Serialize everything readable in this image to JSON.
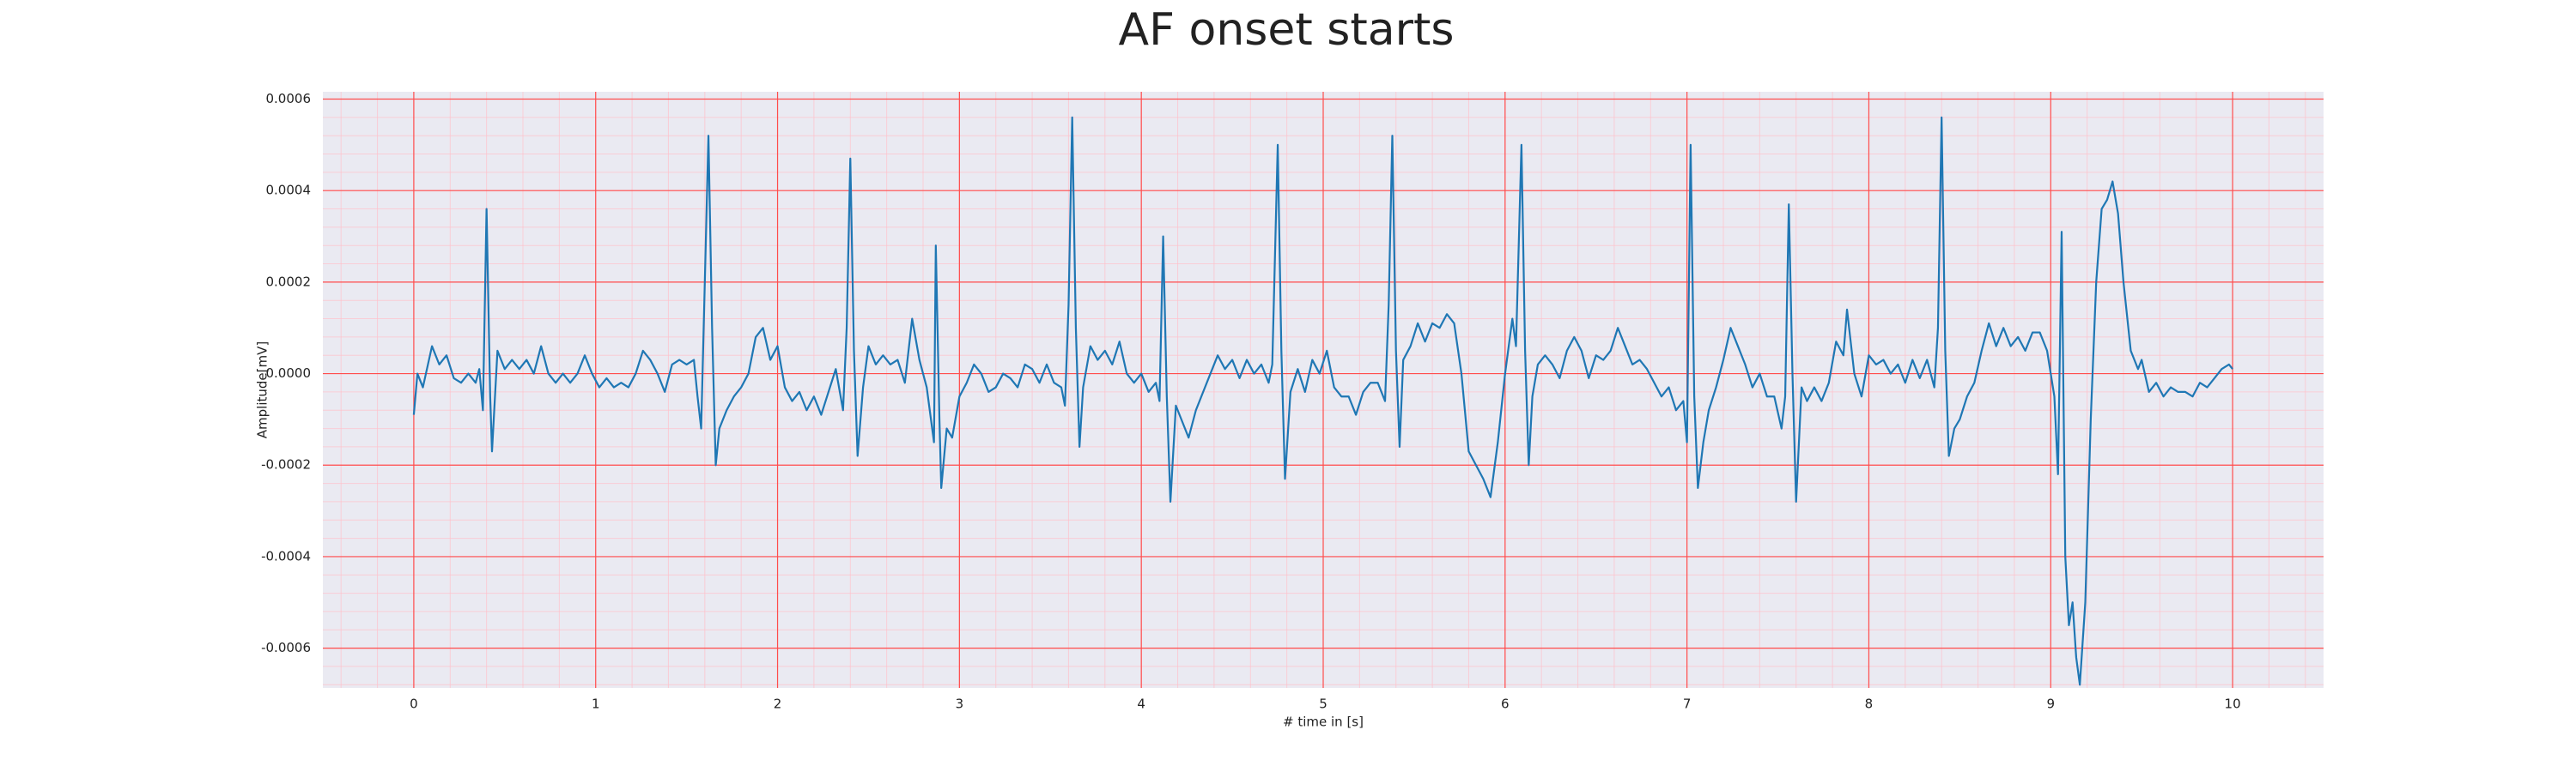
{
  "chart_data": {
    "type": "line",
    "title": "AF onset starts",
    "x_label": "# time in [s]",
    "y_label": "Amplitude[mV]",
    "xlim": [
      -0.5,
      10.5
    ],
    "ylim": [
      -0.000687,
      0.000616
    ],
    "xticks": [
      0,
      1,
      2,
      3,
      4,
      5,
      6,
      7,
      8,
      9,
      10
    ],
    "yticks": [
      0.0006,
      0.0004,
      0.0002,
      {
        "value": 0,
        "label": "0.0000"
      },
      -0.0002,
      -0.0004,
      -0.0006
    ],
    "grid": true,
    "minor_grid": true,
    "series": [
      {
        "color": "#1f77b4",
        "x": [
          0.0,
          0.02,
          0.05,
          0.1,
          0.14,
          0.18,
          0.22,
          0.26,
          0.3,
          0.34,
          0.36,
          0.38,
          0.4,
          0.42,
          0.43,
          0.46,
          0.5,
          0.54,
          0.58,
          0.62,
          0.66,
          0.7,
          0.74,
          0.78,
          0.82,
          0.86,
          0.9,
          0.94,
          0.98,
          1.02,
          1.06,
          1.1,
          1.14,
          1.18,
          1.22,
          1.26,
          1.3,
          1.34,
          1.38,
          1.42,
          1.46,
          1.5,
          1.54,
          1.56,
          1.58,
          1.6,
          1.62,
          1.64,
          1.66,
          1.68,
          1.72,
          1.76,
          1.8,
          1.84,
          1.88,
          1.92,
          1.96,
          2.0,
          2.04,
          2.08,
          2.12,
          2.16,
          2.2,
          2.24,
          2.28,
          2.32,
          2.36,
          2.38,
          2.4,
          2.42,
          2.44,
          2.47,
          2.5,
          2.54,
          2.58,
          2.62,
          2.66,
          2.7,
          2.74,
          2.78,
          2.82,
          2.86,
          2.87,
          2.89,
          2.9,
          2.93,
          2.96,
          3.0,
          3.04,
          3.08,
          3.12,
          3.16,
          3.2,
          3.24,
          3.28,
          3.32,
          3.36,
          3.4,
          3.44,
          3.48,
          3.52,
          3.56,
          3.58,
          3.6,
          3.62,
          3.64,
          3.66,
          3.68,
          3.72,
          3.76,
          3.8,
          3.84,
          3.88,
          3.92,
          3.96,
          4.0,
          4.04,
          4.08,
          4.1,
          4.12,
          4.14,
          4.16,
          4.19,
          4.22,
          4.26,
          4.3,
          4.34,
          4.38,
          4.42,
          4.46,
          4.5,
          4.54,
          4.58,
          4.62,
          4.66,
          4.7,
          4.72,
          4.75,
          4.77,
          4.79,
          4.82,
          4.86,
          4.9,
          4.94,
          4.98,
          5.02,
          5.06,
          5.1,
          5.14,
          5.18,
          5.22,
          5.26,
          5.3,
          5.34,
          5.36,
          5.38,
          5.4,
          5.42,
          5.44,
          5.48,
          5.52,
          5.56,
          5.6,
          5.64,
          5.68,
          5.72,
          5.76,
          5.8,
          5.84,
          5.88,
          5.92,
          5.96,
          6.0,
          6.04,
          6.06,
          6.09,
          6.11,
          6.13,
          6.15,
          6.18,
          6.22,
          6.26,
          6.3,
          6.34,
          6.38,
          6.42,
          6.46,
          6.5,
          6.54,
          6.58,
          6.62,
          6.66,
          6.7,
          6.74,
          6.78,
          6.82,
          6.86,
          6.9,
          6.94,
          6.98,
          7.0,
          7.02,
          7.04,
          7.06,
          7.09,
          7.12,
          7.16,
          7.2,
          7.24,
          7.28,
          7.32,
          7.36,
          7.4,
          7.44,
          7.48,
          7.52,
          7.54,
          7.56,
          7.58,
          7.6,
          7.63,
          7.66,
          7.7,
          7.74,
          7.78,
          7.82,
          7.86,
          7.88,
          7.92,
          7.96,
          8.0,
          8.04,
          8.08,
          8.12,
          8.16,
          8.2,
          8.24,
          8.28,
          8.32,
          8.36,
          8.38,
          8.4,
          8.42,
          8.44,
          8.47,
          8.5,
          8.54,
          8.58,
          8.62,
          8.66,
          8.7,
          8.74,
          8.78,
          8.82,
          8.86,
          8.9,
          8.94,
          8.98,
          9.02,
          9.04,
          9.06,
          9.08,
          9.1,
          9.12,
          9.14,
          9.16,
          9.19,
          9.22,
          9.25,
          9.28,
          9.31,
          9.34,
          9.37,
          9.4,
          9.44,
          9.48,
          9.5,
          9.54,
          9.58,
          9.62,
          9.66,
          9.7,
          9.74,
          9.78,
          9.82,
          9.86,
          9.9,
          9.94,
          9.98,
          10.0
        ],
        "values": [
          -9e-05,
          0,
          -3e-05,
          6e-05,
          2e-05,
          4e-05,
          -1e-05,
          -2e-05,
          0,
          -2e-05,
          1e-05,
          -8e-05,
          0.00036,
          -5e-05,
          -0.00017,
          5e-05,
          1e-05,
          3e-05,
          1e-05,
          3e-05,
          0,
          6e-05,
          0,
          -2e-05,
          0,
          -2e-05,
          0,
          4e-05,
          0,
          -3e-05,
          -1e-05,
          -3e-05,
          -2e-05,
          -3e-05,
          0,
          5e-05,
          3e-05,
          0,
          -4e-05,
          2e-05,
          3e-05,
          2e-05,
          3e-05,
          -5e-05,
          -0.00012,
          0.0002,
          0.00052,
          0.0001,
          -0.0002,
          -0.00012,
          -8e-05,
          -5e-05,
          -3e-05,
          0,
          8e-05,
          0.0001,
          3e-05,
          6e-05,
          -3e-05,
          -6e-05,
          -4e-05,
          -8e-05,
          -5e-05,
          -9e-05,
          -4e-05,
          1e-05,
          -8e-05,
          0.0001,
          0.00047,
          5e-05,
          -0.00018,
          -3e-05,
          6e-05,
          2e-05,
          4e-05,
          2e-05,
          3e-05,
          -2e-05,
          0.00012,
          3e-05,
          -3e-05,
          -0.00015,
          0.00028,
          -0.0001,
          -0.00025,
          -0.00012,
          -0.00014,
          -5e-05,
          -2e-05,
          2e-05,
          0,
          -4e-05,
          -3e-05,
          0,
          -1e-05,
          -3e-05,
          2e-05,
          1e-05,
          -2e-05,
          2e-05,
          -2e-05,
          -3e-05,
          -7e-05,
          0.00015,
          0.00056,
          0.0001,
          -0.00016,
          -3e-05,
          6e-05,
          3e-05,
          5e-05,
          2e-05,
          7e-05,
          0,
          -2e-05,
          0,
          -4e-05,
          -2e-05,
          -6e-05,
          0.0003,
          -5e-05,
          -0.00028,
          -7e-05,
          -0.0001,
          -0.00014,
          -8e-05,
          -4e-05,
          0,
          4e-05,
          1e-05,
          3e-05,
          -1e-05,
          3e-05,
          0,
          2e-05,
          -2e-05,
          2e-05,
          0.0005,
          5e-05,
          -0.00023,
          -4e-05,
          1e-05,
          -4e-05,
          3e-05,
          0,
          5e-05,
          -3e-05,
          -5e-05,
          -5e-05,
          -9e-05,
          -4e-05,
          -2e-05,
          -2e-05,
          -6e-05,
          0.00015,
          0.00052,
          5e-05,
          -0.00016,
          3e-05,
          6e-05,
          0.00011,
          7e-05,
          0.00011,
          0.0001,
          0.00013,
          0.00011,
          0,
          -0.00017,
          -0.0002,
          -0.00023,
          -0.00027,
          -0.00015,
          0,
          0.00012,
          6e-05,
          0.0005,
          5e-05,
          -0.0002,
          -5e-05,
          2e-05,
          4e-05,
          2e-05,
          -1e-05,
          5e-05,
          8e-05,
          5e-05,
          -1e-05,
          4e-05,
          3e-05,
          5e-05,
          0.0001,
          6e-05,
          2e-05,
          3e-05,
          1e-05,
          -2e-05,
          -5e-05,
          -3e-05,
          -8e-05,
          -6e-05,
          -0.00015,
          0.0005,
          -5e-05,
          -0.00025,
          -0.00015,
          -8e-05,
          -3e-05,
          3e-05,
          0.0001,
          6e-05,
          2e-05,
          -3e-05,
          0,
          -5e-05,
          -5e-05,
          -0.00012,
          -5e-05,
          0.00037,
          0,
          -0.00028,
          -3e-05,
          -6e-05,
          -3e-05,
          -6e-05,
          -2e-05,
          7e-05,
          4e-05,
          0.00014,
          0,
          -5e-05,
          4e-05,
          2e-05,
          3e-05,
          0,
          2e-05,
          -2e-05,
          3e-05,
          -1e-05,
          3e-05,
          -3e-05,
          0.0001,
          0.00056,
          5e-05,
          -0.00018,
          -0.00012,
          -0.0001,
          -5e-05,
          -2e-05,
          5e-05,
          0.00011,
          6e-05,
          0.0001,
          6e-05,
          8e-05,
          5e-05,
          9e-05,
          9e-05,
          5e-05,
          -5e-05,
          -0.00022,
          0.00031,
          -0.0004,
          -0.00055,
          -0.0005,
          -0.00062,
          -0.00068,
          -0.0005,
          -0.0001,
          0.0002,
          0.00036,
          0.00038,
          0.00042,
          0.00035,
          0.0002,
          5e-05,
          1e-05,
          3e-05,
          -4e-05,
          -2e-05,
          -5e-05,
          -3e-05,
          -4e-05,
          -4e-05,
          -5e-05,
          -2e-05,
          -3e-05,
          -1e-05,
          1e-05,
          2e-05,
          1e-05
        ]
      }
    ]
  }
}
